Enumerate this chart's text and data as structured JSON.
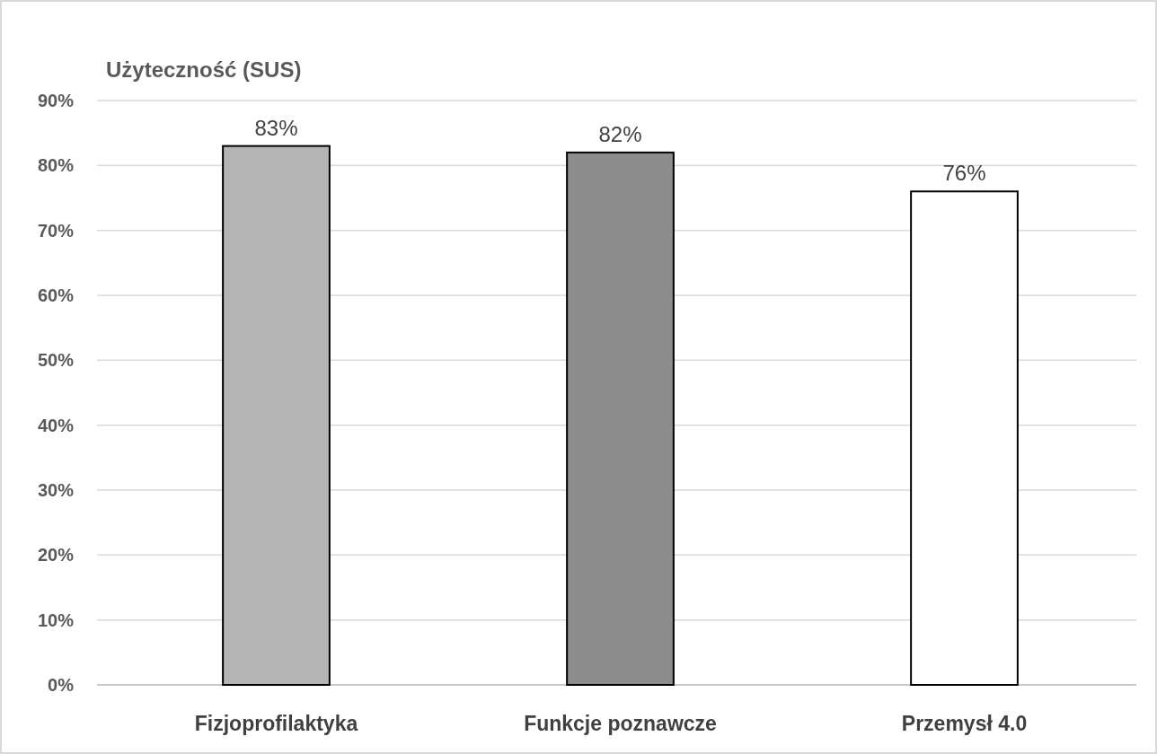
{
  "chart_data": {
    "type": "bar",
    "title": "Użyteczność (SUS)",
    "categories": [
      "Fizjoprofilaktyka",
      "Funkcje poznawcze",
      "Przemysł 4.0"
    ],
    "values": [
      83,
      82,
      76
    ],
    "colors": [
      "#b4b4b4",
      "#8c8c8c",
      "#ffffff"
    ],
    "value_labels": [
      "83%",
      "82%",
      "76%"
    ],
    "ylim": [
      0,
      90
    ],
    "yticks": [
      {
        "value": 0,
        "label": "0%"
      },
      {
        "value": 10,
        "label": "10%"
      },
      {
        "value": 20,
        "label": "20%"
      },
      {
        "value": 30,
        "label": "30%"
      },
      {
        "value": 40,
        "label": "40%"
      },
      {
        "value": 50,
        "label": "50%"
      },
      {
        "value": 60,
        "label": "60%"
      },
      {
        "value": 70,
        "label": "70%"
      },
      {
        "value": 80,
        "label": "80%"
      },
      {
        "value": 90,
        "label": "90%"
      }
    ],
    "grid": "y"
  }
}
